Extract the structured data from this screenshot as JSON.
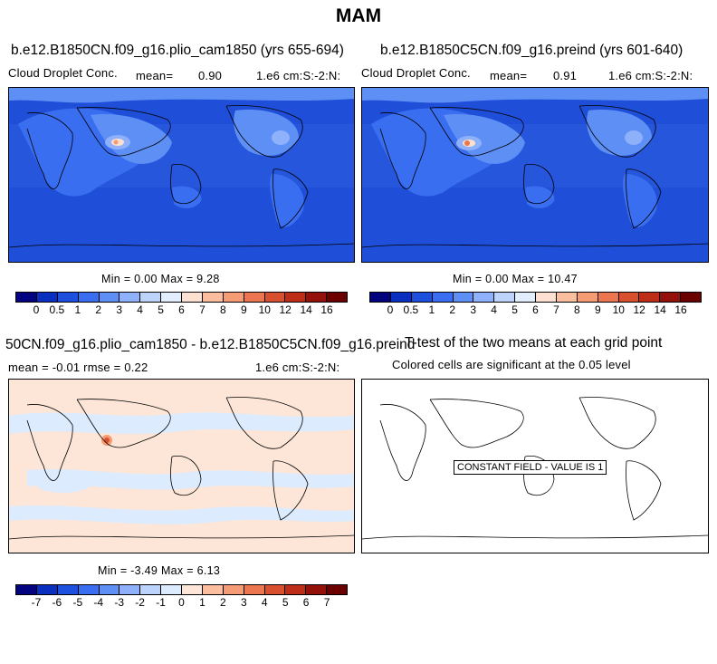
{
  "title": "MAM",
  "panels": [
    {
      "title": "b.e12.B1850CN.f09_g16.plio_cam1850 (yrs 655-694)",
      "left_label": "Cloud Droplet Conc.",
      "mean_label": "mean=",
      "mean_value": "0.90",
      "units": "1.e6 cm:S:-2:N:",
      "min_max": "Min =   0.00 Max =   9.28"
    },
    {
      "title": "b.e12.B1850C5CN.f09_g16.preind (yrs 601-640)",
      "left_label": "Cloud Droplet Conc.",
      "mean_label": "mean=",
      "mean_value": "0.91",
      "units": "1.e6 cm:S:-2:N:",
      "min_max": "Min =   0.00 Max =  10.47"
    },
    {
      "title": "50CN.f09_g16.plio_cam1850 - b.e12.B1850C5CN.f09_g16.preind",
      "stats": "mean =  -0.01    rmse =   0.22",
      "units": "1.e6 cm:S:-2:N:",
      "min_max": "Min =  -3.49 Max =   6.13"
    },
    {
      "title": "T-test of the two means at each grid point",
      "subtitle": "Colored cells are significant at the 0.05 level",
      "constant_field": "CONSTANT FIELD - VALUE IS 1"
    }
  ],
  "chart_data": [
    {
      "type": "heatmap",
      "title": "b.e12.B1850CN.f09_g16.plio_cam1850 (yrs 655-694)",
      "variable": "Cloud Droplet Conc.",
      "units": "1.e6 cm:S:-2:N:",
      "mean": 0.9,
      "min": 0.0,
      "max": 9.28,
      "colorbar_levels": [
        "0",
        "0.5",
        "1",
        "2",
        "3",
        "4",
        "5",
        "6",
        "7",
        "8",
        "9",
        "10",
        "12",
        "14",
        "16"
      ]
    },
    {
      "type": "heatmap",
      "title": "b.e12.B1850C5CN.f09_g16.preind (yrs 601-640)",
      "variable": "Cloud Droplet Conc.",
      "units": "1.e6 cm:S:-2:N:",
      "mean": 0.91,
      "min": 0.0,
      "max": 10.47,
      "colorbar_levels": [
        "0",
        "0.5",
        "1",
        "2",
        "3",
        "4",
        "5",
        "6",
        "7",
        "8",
        "9",
        "10",
        "12",
        "14",
        "16"
      ]
    },
    {
      "type": "heatmap",
      "title": "50CN.f09_g16.plio_cam1850 - b.e12.B1850C5CN.f09_g16.preind",
      "units": "1.e6 cm:S:-2:N:",
      "mean": -0.01,
      "rmse": 0.22,
      "min": -3.49,
      "max": 6.13,
      "colorbar_levels": [
        "-7",
        "-6",
        "-5",
        "-4",
        "-3",
        "-2",
        "-1",
        "0",
        "1",
        "2",
        "3",
        "4",
        "5",
        "6",
        "7"
      ]
    },
    {
      "type": "heatmap",
      "title": "T-test of the two means at each grid point",
      "subtitle": "Colored cells are significant at the 0.05 level",
      "constant_value": 1
    }
  ],
  "colors": {
    "abs_palette": [
      "#03037f",
      "#0a2fbf",
      "#1e50e0",
      "#3a6ef0",
      "#5e8ff5",
      "#8fb0fa",
      "#bcd4fc",
      "#e2eefe",
      "#fde0cf",
      "#fbbfa0",
      "#f59c75",
      "#eb7650",
      "#d9502f",
      "#bd2d17",
      "#94110a",
      "#6b0000"
    ],
    "diff_palette": [
      "#03037f",
      "#0a2fbf",
      "#1e50e0",
      "#3a6ef0",
      "#5e8ff5",
      "#8fb0fa",
      "#bcd4fc",
      "#dcebfd",
      "#fde6d8",
      "#fbbfa0",
      "#f59c75",
      "#eb7650",
      "#d9502f",
      "#bd2d17",
      "#94110a",
      "#6b0000"
    ],
    "ocean_abs": "#1f4fd8",
    "land_abs": "#3a6ef0",
    "diff_bg": "#fde6d8",
    "diff_band": "#dcebfd"
  }
}
